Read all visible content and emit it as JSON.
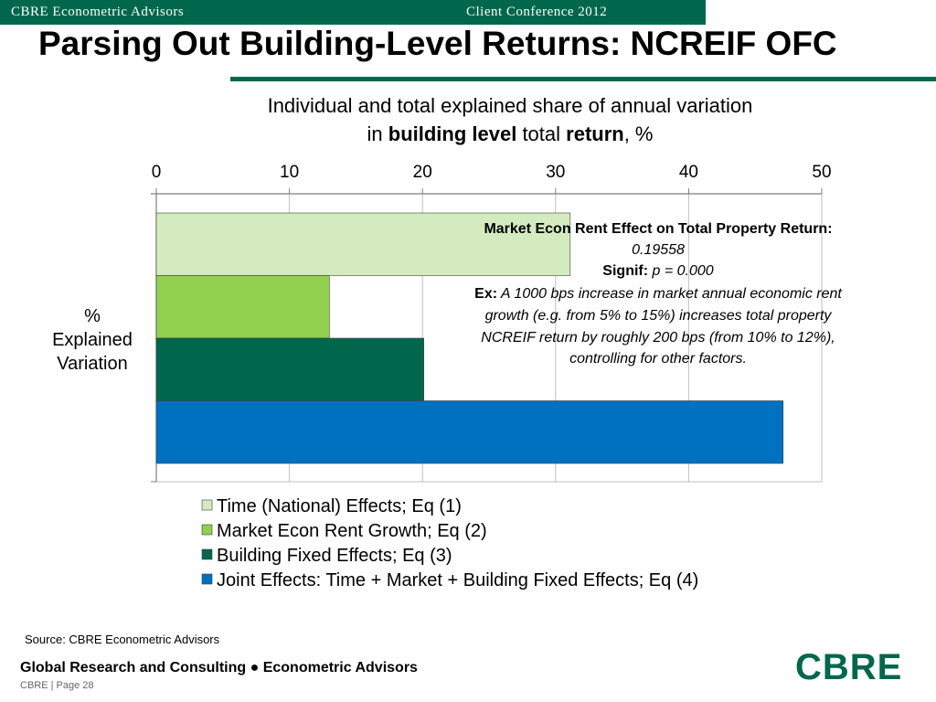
{
  "header": {
    "left": "CBRE Econometric Advisors",
    "right": "Client Conference 2012"
  },
  "page_title": "Parsing Out Building-Level Returns: NCREIF OFC",
  "chart_data": {
    "type": "bar",
    "orientation": "horizontal",
    "title_line1": "Individual and total explained share of annual variation",
    "title_line2": {
      "p1": "in ",
      "b1": "building level",
      "p2": " total ",
      "b2": "return",
      "p3": ", %"
    },
    "ylabel": [
      "%",
      "Explained",
      "Variation"
    ],
    "xlim": [
      0,
      50
    ],
    "xticks": [
      0,
      10,
      20,
      30,
      40,
      50
    ],
    "xaxis_position": "top",
    "grid": true,
    "legend_position": "bottom",
    "series": [
      {
        "name": "Time (National) Effects; Eq (1)",
        "value": 31.1,
        "color": "#d4ebbf"
      },
      {
        "name": "Market Econ Rent Growth; Eq (2)",
        "value": 13.0,
        "color": "#92d050"
      },
      {
        "name": "Building Fixed Effects; Eq (3)",
        "value": 20.1,
        "color": "#00674c"
      },
      {
        "name": "Joint Effects: Time + Market + Building Fixed Effects; Eq (4)",
        "value": 47.1,
        "color": "#0070c0"
      }
    ],
    "annotation": {
      "l1": "Market  Econ Rent Effect on Total Property Return:",
      "l2": "0.19558",
      "l3_bold": "Signif:",
      "l3_rest": " p = 0.000",
      "l4_bold": "Ex:",
      "l4_rest": " A 1000 bps increase in market annual economic rent",
      "l5": "growth (e.g. from 5% to 15%) increases total property",
      "l6": "NCREIF return by roughly 200 bps (from 10% to 12%),",
      "l7": "controlling for other factors."
    }
  },
  "source": "Source: CBRE Econometric Advisors",
  "footer": {
    "main": "Global Research and Consulting ● Econometric Advisors",
    "sub": "CBRE  |  Page 28",
    "logo": "CBRE"
  },
  "colors": {
    "brand_green": "#00674c"
  }
}
